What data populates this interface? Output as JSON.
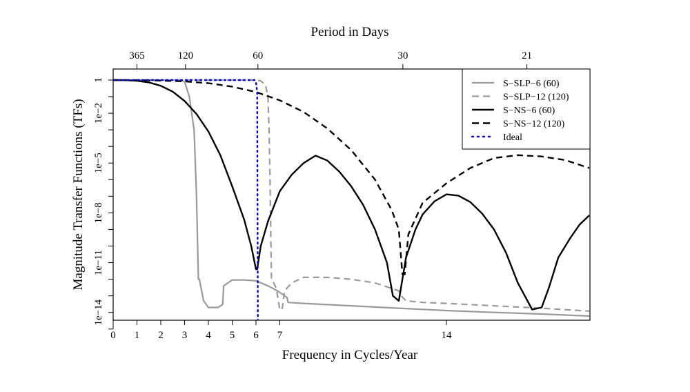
{
  "chart_data": {
    "type": "line",
    "title": "",
    "xlabel": "Frequency in Cycles/Year",
    "ylabel": "Magnitude Transfer Functions (TFs)",
    "top_axis_label": "Period in Days",
    "scale_y": "log10",
    "xlim": [
      0,
      20
    ],
    "ylim": [
      1e-15,
      10
    ],
    "x_ticks": [
      0,
      1,
      2,
      3,
      4,
      5,
      6,
      7,
      14
    ],
    "x_tick_labels": [
      "0",
      "1",
      "2",
      "3",
      "4",
      "5",
      "6",
      "7",
      "14"
    ],
    "top_ticks": [
      {
        "x": 1,
        "label": "365"
      },
      {
        "x": 3.04,
        "label": "120"
      },
      {
        "x": 6.08,
        "label": "60"
      },
      {
        "x": 12.17,
        "label": "30"
      },
      {
        "x": 17.38,
        "label": "21"
      }
    ],
    "y_ticks": [
      1,
      0.01,
      1e-05,
      1e-08,
      1e-11,
      1e-14
    ],
    "y_tick_labels": [
      "1",
      "1e−2",
      "1e−5",
      "1e−8",
      "1e−11",
      "1e−14"
    ],
    "y_minor_ticks": [
      0.1,
      0.001,
      0.0001,
      1e-06,
      1e-07,
      1e-09,
      1e-10,
      1e-12,
      1e-13,
      1e-15
    ],
    "grid": false,
    "legend_position": "top-right",
    "series": [
      {
        "name": "S−SLP−6 (60)",
        "color": "#999999",
        "dash": "solid",
        "width": 2.2,
        "points": [
          [
            0,
            1
          ],
          [
            2.8,
            1
          ],
          [
            3.0,
            0.8
          ],
          [
            3.2,
            0.1
          ],
          [
            3.4,
            0.001
          ],
          [
            3.5,
            1e-07
          ],
          [
            3.58,
            1e-12
          ],
          [
            3.62,
            1e-12
          ],
          [
            3.8,
            5e-14
          ],
          [
            4.0,
            2e-14
          ],
          [
            4.4,
            2e-14
          ],
          [
            4.6,
            3e-14
          ],
          [
            4.64,
            4e-13
          ],
          [
            5.0,
            9e-13
          ],
          [
            5.5,
            9e-13
          ],
          [
            6.0,
            8e-13
          ],
          [
            6.5,
            4e-13
          ],
          [
            6.9,
            2e-13
          ],
          [
            7.3,
            8e-14
          ],
          [
            7.35,
            4e-14
          ],
          [
            8,
            3.5e-14
          ],
          [
            10,
            2.5e-14
          ],
          [
            12,
            1.8e-14
          ],
          [
            14,
            1.3e-14
          ],
          [
            16,
            1e-14
          ],
          [
            18,
            8e-15
          ],
          [
            20,
            6e-15
          ]
        ]
      },
      {
        "name": "S−SLP−12 (120)",
        "color": "#999999",
        "dash": "dashed",
        "width": 2.2,
        "points": [
          [
            0,
            1
          ],
          [
            6.0,
            1
          ],
          [
            6.2,
            0.9
          ],
          [
            6.4,
            0.5
          ],
          [
            6.5,
            0.1
          ],
          [
            6.55,
            0.001
          ],
          [
            6.6,
            1e-07
          ],
          [
            6.65,
            1e-12
          ],
          [
            6.7,
            8e-13
          ],
          [
            6.85,
            3e-13
          ],
          [
            7.0,
            1.5e-14
          ],
          [
            7.1,
            1.5e-14
          ],
          [
            7.2,
            2e-13
          ],
          [
            7.5,
            6e-13
          ],
          [
            8.0,
            1.3e-12
          ],
          [
            8.5,
            1.3e-12
          ],
          [
            9.0,
            1.3e-12
          ],
          [
            10,
            1e-12
          ],
          [
            11,
            6e-13
          ],
          [
            12.0,
            2e-13
          ],
          [
            12.1,
            1e-13
          ],
          [
            12.3,
            5e-14
          ],
          [
            13,
            4e-14
          ],
          [
            14,
            3.5e-14
          ],
          [
            16,
            2.5e-14
          ],
          [
            18,
            1.8e-14
          ],
          [
            20,
            1.2e-14
          ]
        ]
      },
      {
        "name": "S−NS−6 (60)",
        "color": "#000000",
        "dash": "solid",
        "width": 2.4,
        "points": [
          [
            0,
            1
          ],
          [
            0.5,
            0.98
          ],
          [
            1,
            0.9
          ],
          [
            1.5,
            0.72
          ],
          [
            2,
            0.45
          ],
          [
            2.5,
            0.2
          ],
          [
            3,
            0.055
          ],
          [
            3.5,
            0.009
          ],
          [
            4,
            0.0008
          ],
          [
            4.5,
            3e-05
          ],
          [
            5,
            4e-07
          ],
          [
            5.5,
            4e-09
          ],
          [
            5.8,
            1e-10
          ],
          [
            6.0,
            4e-12
          ],
          [
            6.05,
            4e-12
          ],
          [
            6.2,
            1e-10
          ],
          [
            6.5,
            3e-09
          ],
          [
            7,
            2e-07
          ],
          [
            7.5,
            2e-06
          ],
          [
            8,
            1e-05
          ],
          [
            8.5,
            2.8e-05
          ],
          [
            9.0,
            1.4e-05
          ],
          [
            9.5,
            3e-06
          ],
          [
            10,
            4e-07
          ],
          [
            10.5,
            3e-08
          ],
          [
            11,
            1e-09
          ],
          [
            11.5,
            1e-11
          ],
          [
            11.75,
            1e-13
          ],
          [
            12.0,
            5e-14
          ],
          [
            12.3,
            2e-11
          ],
          [
            12.7,
            1e-09
          ],
          [
            13,
            8e-09
          ],
          [
            13.5,
            5e-08
          ],
          [
            14,
            1.3e-07
          ],
          [
            14.5,
            1.1e-07
          ],
          [
            15,
            4.5e-08
          ],
          [
            15.5,
            9e-09
          ],
          [
            16,
            1e-09
          ],
          [
            16.5,
            4e-11
          ],
          [
            17,
            6e-13
          ],
          [
            17.6,
            1.5e-14
          ],
          [
            18.0,
            2e-14
          ],
          [
            18.3,
            3e-13
          ],
          [
            18.7,
            2e-11
          ],
          [
            19.2,
            3e-10
          ],
          [
            19.6,
            2e-09
          ],
          [
            20,
            7e-09
          ]
        ]
      },
      {
        "name": "S−NS−12 (120)",
        "color": "#000000",
        "dash": "dashed",
        "width": 2.4,
        "points": [
          [
            0,
            1
          ],
          [
            1,
            0.985
          ],
          [
            2,
            0.93
          ],
          [
            3,
            0.83
          ],
          [
            4,
            0.65
          ],
          [
            5,
            0.4
          ],
          [
            6,
            0.19
          ],
          [
            7,
            0.06
          ],
          [
            8,
            0.012
          ],
          [
            9,
            0.0012
          ],
          [
            10,
            6e-05
          ],
          [
            11,
            1e-06
          ],
          [
            11.7,
            1.5e-08
          ],
          [
            12.0,
            1e-09
          ],
          [
            12.15,
            2e-12
          ],
          [
            12.25,
            2e-12
          ],
          [
            12.4,
            5e-10
          ],
          [
            13,
            4e-08
          ],
          [
            14,
            6e-07
          ],
          [
            15,
            5e-06
          ],
          [
            16,
            2e-05
          ],
          [
            17,
            3e-05
          ],
          [
            18,
            2.5e-05
          ],
          [
            19,
            1.5e-05
          ],
          [
            20,
            5e-06
          ]
        ]
      },
      {
        "name": "Ideal",
        "color": "#0000cc",
        "dash": "dotted",
        "width": 2.4,
        "points": [
          [
            0,
            1
          ],
          [
            5.95,
            1
          ],
          [
            6.0,
            0.7
          ],
          [
            6.05,
            0.2
          ],
          [
            6.08,
            1e-15
          ]
        ]
      }
    ]
  }
}
